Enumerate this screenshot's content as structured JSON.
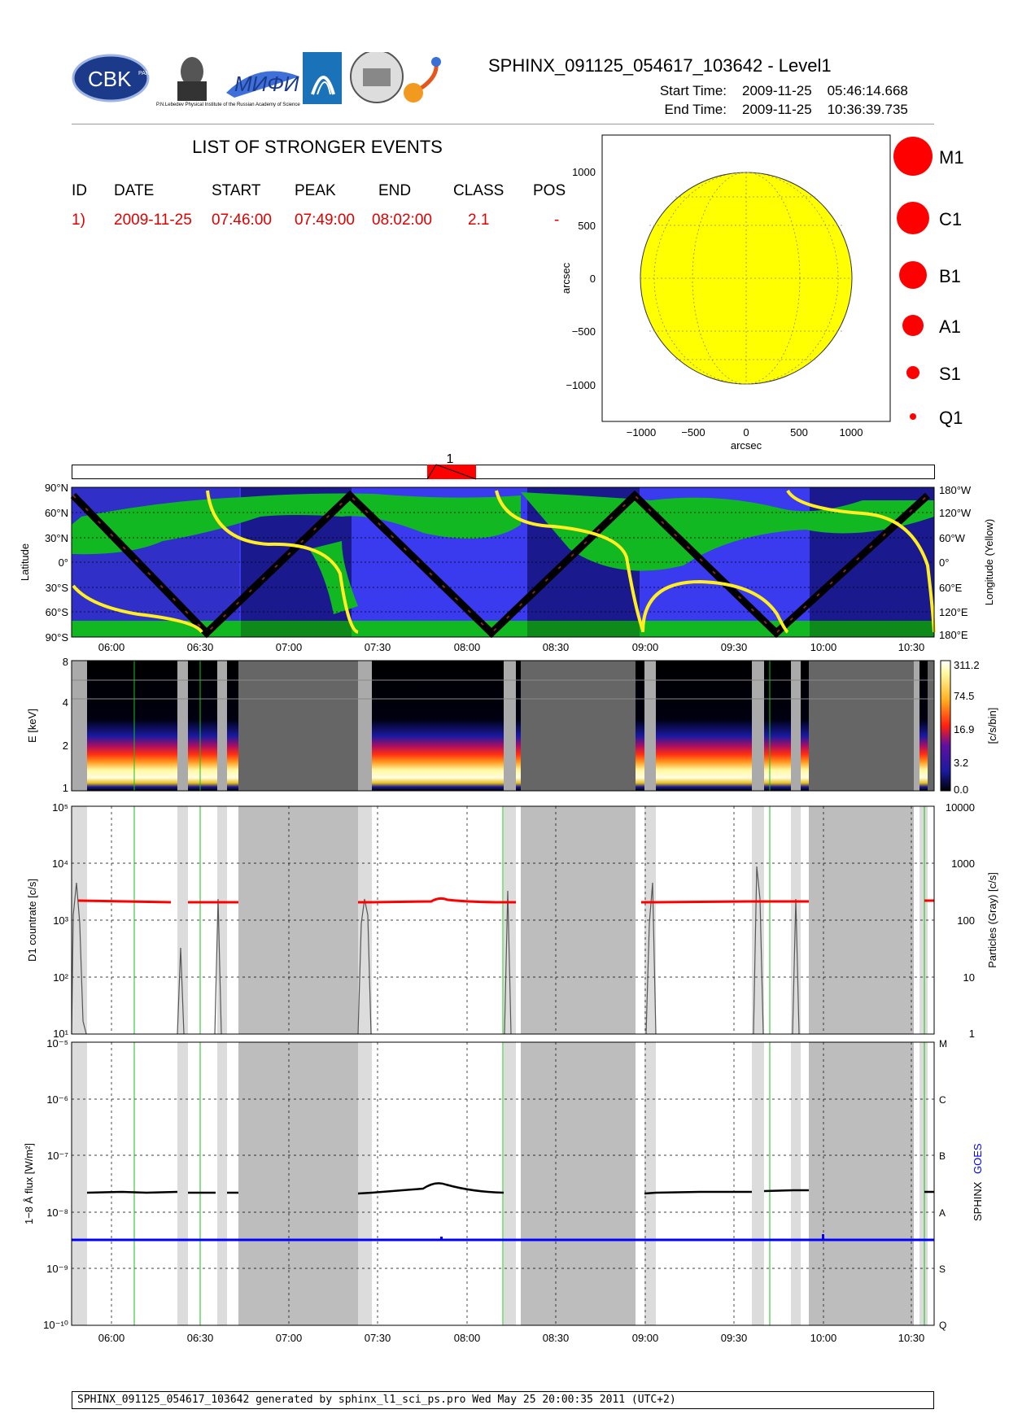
{
  "header": {
    "title": "SPHINX_091125_054617_103642 - Level1",
    "start_label": "Start Time:",
    "start_value": "2009-11-25    05:46:14.668",
    "end_label": "End Time:",
    "end_value": "2009-11-25    10:36:39.735"
  },
  "logos": {
    "cbk": "CBK",
    "cbk_sub": "PAN",
    "lebedev": "P.N.Lebedev Physical Institute of the Russian Academy of Science",
    "mifi": "МИФИ"
  },
  "events": {
    "title": "LIST OF STRONGER EVENTS",
    "columns": [
      "ID",
      "DATE",
      "START",
      "PEAK",
      "END",
      "CLASS",
      "POS"
    ],
    "rows": [
      [
        "1)",
        "2009-11-25",
        "07:46:00",
        "07:49:00",
        "08:02:00",
        "2.1",
        "-"
      ]
    ]
  },
  "sun": {
    "xlabel": "arcsec",
    "ylabel": "arcsec",
    "xticks": [
      "−1000",
      "−500",
      "0",
      "500",
      "1000"
    ],
    "yticks": [
      "1000",
      "500",
      "0",
      "−500",
      "−1000"
    ],
    "disk_color": "#ffff00"
  },
  "legend_classes": [
    "M1",
    "C1",
    "B1",
    "A1",
    "S1",
    "Q1"
  ],
  "event_bar": {
    "label": "1",
    "color": "#ff0000"
  },
  "time_ticks": [
    "06:00",
    "06:30",
    "07:00",
    "07:30",
    "08:00",
    "08:30",
    "09:00",
    "09:30",
    "10:00",
    "10:30"
  ],
  "panels": {
    "orbit": {
      "ylabel": "Latitude",
      "ylabel_right": "Longitude (Yellow)",
      "lat_ticks": [
        "90°N",
        "60°N",
        "30°N",
        "0°",
        "30°S",
        "60°S",
        "90°S"
      ],
      "lon_ticks": [
        "180°W",
        "120°W",
        "60°W",
        "0°",
        "60°E",
        "120°E",
        "180°E"
      ]
    },
    "spectrogram": {
      "ylabel": "E [keV]",
      "yticks": [
        "8",
        "4",
        "2",
        "1"
      ],
      "cbar_label": "[c/s/bin]",
      "cbar_ticks": [
        "311.2",
        "74.5",
        "16.9",
        "3.2",
        "0.0"
      ]
    },
    "countrate": {
      "ylabel": "D1 countrate [c/s]",
      "ylabel_right": "Particles (Gray) [c/s]",
      "yticks": [
        "10⁵",
        "10⁴",
        "10³",
        "10²",
        "10¹"
      ],
      "yticks_right": [
        "10000",
        "1000",
        "100",
        "10",
        "1"
      ]
    },
    "flux": {
      "ylabel": "1−8 Å flux [W/m²]",
      "yticks": [
        "10⁻⁵",
        "10⁻⁶",
        "10⁻⁷",
        "10⁻⁸",
        "10⁻⁹",
        "10⁻¹⁰"
      ],
      "classes": [
        "M",
        "C",
        "B",
        "A",
        "S",
        "Q"
      ],
      "legend_sphinx": "SPHINX",
      "legend_goes": "GOES",
      "goes_color": "#0000ff"
    }
  },
  "chart_data": [
    {
      "type": "line",
      "title": "D1 countrate",
      "x_unit": "UT time (hours)",
      "xlim": [
        5.77,
        10.61
      ],
      "ylim": [
        10,
        100000
      ],
      "yscale": "log",
      "series": [
        {
          "values_x": [
            5.95,
            6.6,
            6.75,
            7.7,
            7.8,
            7.9,
            8.0,
            8.3,
            9.0,
            9.5,
            10.0,
            10.55
          ],
          "values_y": [
            1500,
            1450,
            1450,
            1550,
            1700,
            1900,
            1650,
            1550,
            1500,
            1500,
            1500,
            1500
          ]
        }
      ]
    },
    {
      "type": "line",
      "title": "1-8 A flux",
      "x_unit": "UT time (hours)",
      "xlim": [
        5.77,
        10.61
      ],
      "ylim": [
        1e-10,
        1e-05
      ],
      "yscale": "log",
      "series": [
        {
          "name": "SPHINX",
          "values_x": [
            5.95,
            6.6,
            6.75,
            7.7,
            7.8,
            7.85,
            8.0,
            8.3,
            9.0,
            9.5,
            10.0,
            10.55
          ],
          "values_y": [
            2.8e-08,
            2.7e-08,
            2.6e-08,
            2.6e-08,
            3.5e-08,
            4.2e-08,
            3e-08,
            2.7e-08,
            2.7e-08,
            2.8e-08,
            3e-08,
            2.8e-08
          ]
        },
        {
          "name": "GOES",
          "values_x": [
            5.77,
            10.61
          ],
          "values_y": [
            3.8e-09,
            3.8e-09
          ]
        }
      ]
    }
  ],
  "footer": "SPHINX_091125_054617_103642 generated by sphinx_l1_sci_ps.pro Wed May 25 20:00:35 2011 (UTC+2)"
}
